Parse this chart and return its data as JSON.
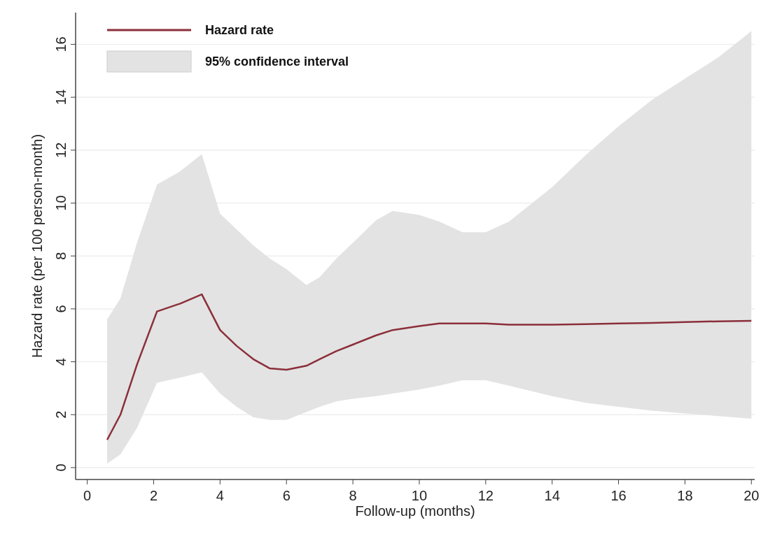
{
  "chart_data": {
    "type": "line",
    "xlabel": "Follow-up (months)",
    "ylabel": "Hazard rate (per 100 person-month)",
    "xlim": [
      -0.35,
      20.1
    ],
    "ylim": [
      -0.45,
      17.2
    ],
    "xticks": [
      0,
      2,
      4,
      6,
      8,
      10,
      12,
      14,
      16,
      18,
      20
    ],
    "yticks": [
      0,
      2,
      4,
      6,
      8,
      10,
      12,
      14,
      16
    ],
    "grid": "y",
    "legend": "top left",
    "annotations": [
      "95% confidence interval"
    ],
    "series": [
      {
        "name": "Hazard rate",
        "color": "#8b2f3a",
        "x": [
          0.6,
          1.0,
          1.5,
          2.1,
          2.8,
          3.45,
          4.0,
          4.5,
          5.0,
          5.5,
          6.0,
          6.6,
          7.0,
          7.5,
          8.0,
          8.7,
          9.2,
          10.0,
          10.6,
          11.3,
          12.0,
          12.7,
          14.0,
          15.0,
          16.0,
          17.0,
          18.0,
          19.0,
          20.0
        ],
        "values": [
          1.05,
          2.0,
          3.9,
          5.9,
          6.2,
          6.55,
          5.2,
          4.6,
          4.1,
          3.75,
          3.7,
          3.85,
          4.1,
          4.4,
          4.65,
          5.0,
          5.2,
          5.35,
          5.45,
          5.45,
          5.45,
          5.4,
          5.4,
          5.42,
          5.45,
          5.47,
          5.5,
          5.53,
          5.55
        ],
        "lower": [
          0.15,
          0.5,
          1.5,
          3.2,
          3.4,
          3.6,
          2.8,
          2.3,
          1.9,
          1.8,
          1.8,
          2.1,
          2.3,
          2.5,
          2.6,
          2.7,
          2.8,
          2.95,
          3.1,
          3.3,
          3.3,
          3.1,
          2.7,
          2.45,
          2.3,
          2.15,
          2.05,
          1.95,
          1.85
        ],
        "upper": [
          5.6,
          6.4,
          8.5,
          10.7,
          11.2,
          11.85,
          9.6,
          9.0,
          8.4,
          7.9,
          7.5,
          6.9,
          7.2,
          7.9,
          8.5,
          9.35,
          9.7,
          9.55,
          9.3,
          8.9,
          8.9,
          9.3,
          10.6,
          11.8,
          12.9,
          13.9,
          14.7,
          15.5,
          16.5
        ]
      }
    ]
  }
}
